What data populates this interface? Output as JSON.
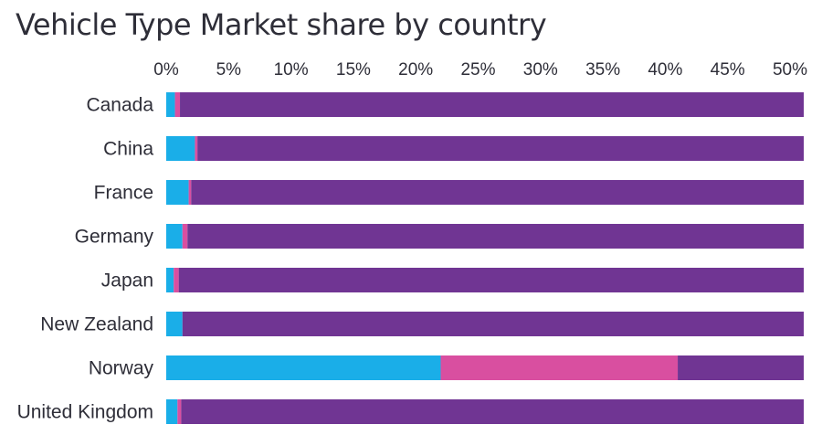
{
  "chart_data": {
    "type": "bar",
    "orientation": "horizontal",
    "stacked": true,
    "title": "Vehicle Type Market share by country",
    "categories": [
      "Canada",
      "China",
      "France",
      "Germany",
      "Japan",
      "New Zealand",
      "Norway",
      "United Kingdom"
    ],
    "x_ticks": [
      "0%",
      "5%",
      "10%",
      "15%",
      "20%",
      "25%",
      "30%",
      "35%",
      "40%",
      "45%",
      "50%"
    ],
    "xlim": [
      0,
      52
    ],
    "x_axis_position": "top",
    "grid": false,
    "legend": "none",
    "series": [
      {
        "color": "#1aaee8",
        "values": [
          0.7,
          2.3,
          1.8,
          1.3,
          0.6,
          1.3,
          22.0,
          0.9
        ]
      },
      {
        "color": "#d94fa0",
        "values": [
          0.4,
          0.2,
          0.2,
          0.4,
          0.4,
          0.0,
          19.0,
          0.3
        ]
      },
      {
        "color": "#703593",
        "values": [
          50.9,
          49.5,
          50.0,
          50.3,
          51.0,
          50.7,
          11.0,
          50.8
        ]
      }
    ]
  }
}
